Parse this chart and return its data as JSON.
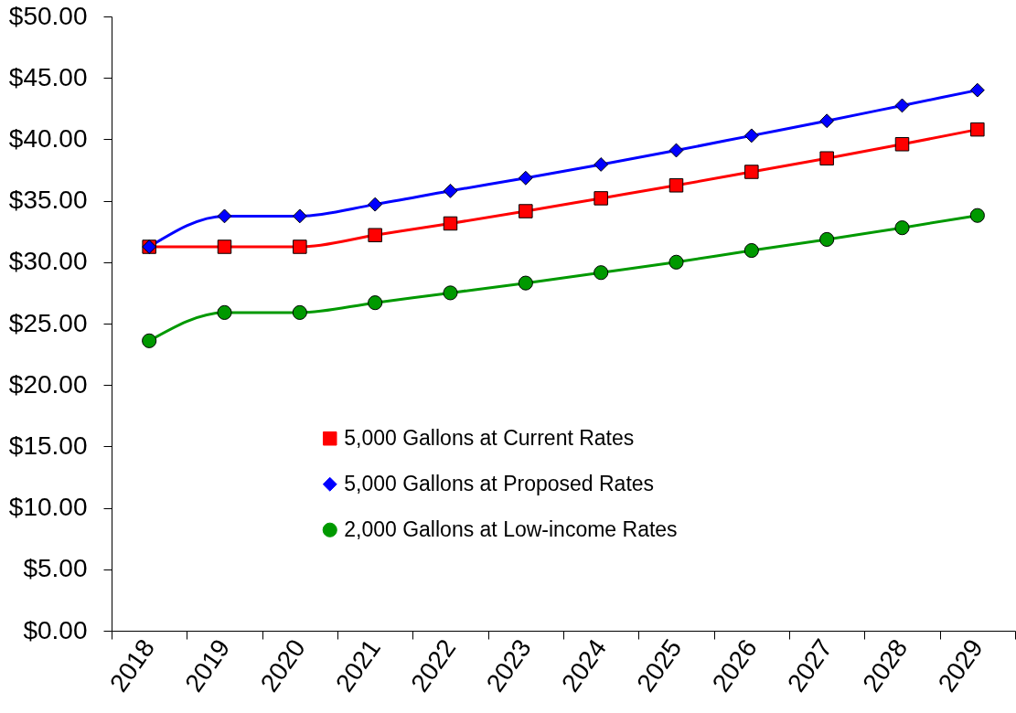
{
  "chart_data": {
    "type": "line",
    "categories": [
      "2018",
      "2019",
      "2020",
      "2021",
      "2022",
      "2023",
      "2024",
      "2025",
      "2026",
      "2027",
      "2028",
      "2029"
    ],
    "series": [
      {
        "name": "5,000 Gallons at Current Rates",
        "color": "#ff0000",
        "marker": "square",
        "values": [
          31.25,
          31.25,
          31.25,
          32.2,
          33.15,
          34.15,
          35.2,
          36.25,
          37.35,
          38.45,
          39.6,
          40.8
        ]
      },
      {
        "name": "5,000 Gallons at Proposed Rates",
        "color": "#0000ff",
        "marker": "diamond",
        "values": [
          31.25,
          33.75,
          33.75,
          34.7,
          35.8,
          36.85,
          37.95,
          39.1,
          40.3,
          41.5,
          42.75,
          44.0
        ]
      },
      {
        "name": "2,000 Gallons at Low-income Rates",
        "color": "#009900",
        "marker": "circle",
        "values": [
          23.6,
          25.9,
          25.9,
          26.7,
          27.5,
          28.3,
          29.15,
          30.0,
          30.95,
          31.85,
          32.8,
          33.8
        ]
      }
    ],
    "ylim": [
      0,
      50
    ],
    "yticks": [
      {
        "value": 0,
        "label": "$0.00"
      },
      {
        "value": 5,
        "label": "$5.00"
      },
      {
        "value": 10,
        "label": "$10.00"
      },
      {
        "value": 15,
        "label": "$15.00"
      },
      {
        "value": 20,
        "label": "$20.00"
      },
      {
        "value": 25,
        "label": "$25.00"
      },
      {
        "value": 30,
        "label": "$30.00"
      },
      {
        "value": 35,
        "label": "$35.00"
      },
      {
        "value": 40,
        "label": "$40.00"
      },
      {
        "value": 45,
        "label": "$45.00"
      },
      {
        "value": 50,
        "label": "$50.00"
      }
    ],
    "grid": false,
    "legend": "bottom",
    "line_style": "solid"
  }
}
